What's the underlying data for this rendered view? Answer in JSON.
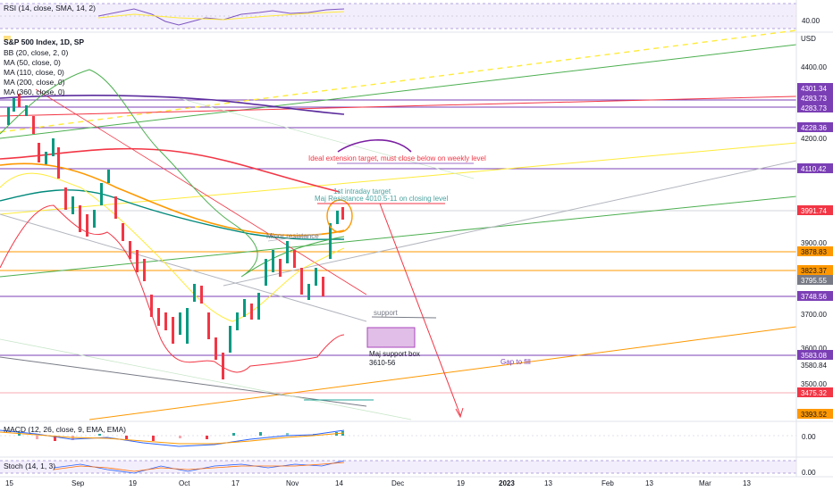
{
  "pane_legends": {
    "rsi": "RSI (14, close, SMA, 14, 2)",
    "macd": "MACD (12, 26, close, 9, EMA, EMA)",
    "stoch": "Stoch (14, 1, 3)"
  },
  "main_legend": {
    "title": "S&P 500 Index, 1D, SP",
    "studies": [
      "BB (20, close, 2, 0)",
      "MA (50, close, 0)",
      "MA (110, close, 0)",
      "MA (200, close, 0)",
      "MA (360, close, 0)"
    ]
  },
  "axis": {
    "currency": "USD",
    "price_ticks": [
      "4400.00",
      "4200.00",
      "3900.00",
      "3700.00",
      "3580.84",
      "3500.00",
      "3600.00"
    ],
    "rsi_tick": "40.00",
    "macd_tick": "0.00",
    "stoch_tick": "0.00",
    "time_ticks": [
      "15",
      "Sep",
      "19",
      "Oct",
      "17",
      "Nov",
      "14",
      "Dec",
      "19",
      "2023",
      "13",
      "Feb",
      "13",
      "Mar",
      "13"
    ]
  },
  "price_tags": [
    {
      "label": "4301.34",
      "color": "#7b3fb5"
    },
    {
      "label": "4283.73",
      "color": "#7b3fb5"
    },
    {
      "label": "4283.73",
      "color": "#7b3fb5"
    },
    {
      "label": "4228.36",
      "color": "#7b3fb5"
    },
    {
      "label": "4110.42",
      "color": "#7b3fb5"
    },
    {
      "label": "3991.74",
      "color": "#f23645"
    },
    {
      "label": "3878.83",
      "color": "#ff9800"
    },
    {
      "label": "3823.37",
      "color": "#ff9800"
    },
    {
      "label": "3795.55",
      "color": "#787b86"
    },
    {
      "label": "3748.56",
      "color": "#7b3fb5"
    },
    {
      "label": "3583.08",
      "color": "#7b3fb5"
    },
    {
      "label": "3475.32",
      "color": "#f23645"
    },
    {
      "label": "3393.52",
      "color": "#ff9800"
    }
  ],
  "annotations": {
    "ideal_extension": "Ideal extension target, must close below on weekly level",
    "first_intraday": "1st intraday target",
    "major_resistance": "Maj Resistance 4010.5-11 on closing level",
    "minor_resistance": "Minor resistance",
    "support": "support",
    "support_box_title": "Maj support box",
    "support_box_range": "3610-56",
    "gap_to_fill": "Gap to fill"
  },
  "colors": {
    "up_candle": "#089981",
    "down_candle": "#f23645",
    "purple": "#7b3fb5",
    "orange": "#ff9800",
    "green_line": "#4caf50",
    "yellow": "#ffeb3b"
  }
}
